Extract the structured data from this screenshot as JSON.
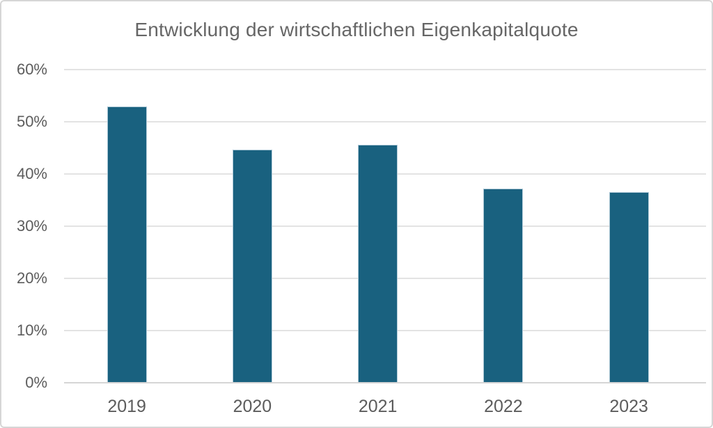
{
  "chart": {
    "title": "Entwicklung der wirtschaftlichen Eigenkapitalquote"
  },
  "chart_data": {
    "type": "bar",
    "title": "Entwicklung der wirtschaftlichen Eigenkapitalquote",
    "categories": [
      "2019",
      "2020",
      "2021",
      "2022",
      "2023"
    ],
    "values": [
      52.9,
      44.7,
      45.6,
      37.2,
      36.5
    ],
    "xlabel": "",
    "ylabel": "",
    "ylim": [
      0,
      60
    ],
    "ytick_step": 10,
    "yticks": [
      {
        "value": 0,
        "label": "0%"
      },
      {
        "value": 10,
        "label": "10%"
      },
      {
        "value": 20,
        "label": "20%"
      },
      {
        "value": 30,
        "label": "30%"
      },
      {
        "value": 40,
        "label": "40%"
      },
      {
        "value": 50,
        "label": "50%"
      },
      {
        "value": 60,
        "label": "60%"
      }
    ],
    "grid": true,
    "legend": false,
    "colors": {
      "bar_fill": "#19617F",
      "bar_edge": "#AFC9D7",
      "gridline": "#E3E3E3",
      "axis_line": "#D5D5D5",
      "tick_text": "#5C5C5C",
      "title_text": "#666666",
      "background": "#FFFFFF",
      "frame_border": "#D6D6D6"
    }
  }
}
